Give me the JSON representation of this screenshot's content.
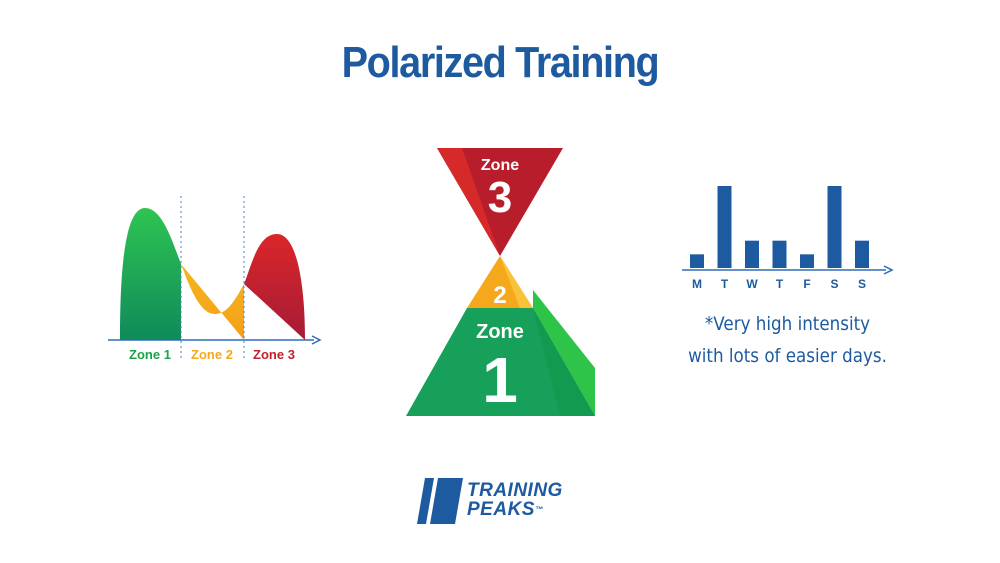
{
  "title": "Polarized Training",
  "left_chart": {
    "zones": [
      {
        "label": "Zone 1",
        "color": "#1ba34a"
      },
      {
        "label": "Zone 2",
        "color": "#f5a81c"
      },
      {
        "label": "Zone 3",
        "color": "#c21f2b"
      }
    ]
  },
  "pyramid": {
    "zone3": {
      "word": "Zone",
      "number": "3",
      "color": "#c21f2b"
    },
    "zone2": {
      "number": "2",
      "color": "#f5a81c"
    },
    "zone1": {
      "word": "Zone",
      "number": "1",
      "color": "#1ba34a"
    }
  },
  "week_chart": {
    "days": [
      "M",
      "T",
      "W",
      "T",
      "F",
      "S",
      "S"
    ],
    "values": [
      1,
      6,
      2,
      2,
      1,
      6,
      2
    ],
    "bar_color": "#1e5aa0"
  },
  "note": {
    "line1": "*Very high intensity",
    "line2": "with lots of easier days."
  },
  "logo": {
    "line1": "TRAINING",
    "line2": "PEAKS",
    "trademark": "™"
  },
  "colors": {
    "brand_blue": "#1e5aa0",
    "green": "#1ba34a",
    "orange": "#f5a81c",
    "red": "#c21f2b"
  }
}
